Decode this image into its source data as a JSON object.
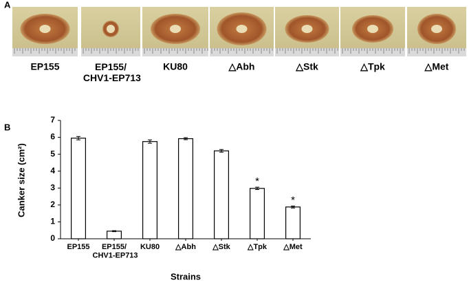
{
  "panel_a": {
    "label": "A",
    "samples": [
      "EP155",
      "EP155/\nCHV1-EP713",
      "KU80",
      "△Abh",
      "△Stk",
      "△Tpk",
      "△Met"
    ]
  },
  "panel_b": {
    "label": "B"
  },
  "chart_data": {
    "type": "bar",
    "ylabel": "Canker size (cm²)",
    "xlabel": "Strains",
    "categories": [
      "EP155",
      "EP155/\nCHV1-EP713",
      "KU80",
      "△Abh",
      "△Stk",
      "△Tpk",
      "△Met"
    ],
    "values": [
      5.95,
      0.45,
      5.75,
      5.92,
      5.2,
      2.98,
      1.88
    ],
    "errors": [
      0.1,
      0.03,
      0.1,
      0.06,
      0.08,
      0.07,
      0.06
    ],
    "significance": [
      null,
      null,
      null,
      null,
      null,
      "*",
      "*"
    ],
    "color": "#ffffff",
    "edgecolor": "#000000",
    "ylim": [
      0,
      7
    ],
    "yticks": [
      0,
      1,
      2,
      3,
      4,
      5,
      6,
      7
    ],
    "grid": false
  }
}
